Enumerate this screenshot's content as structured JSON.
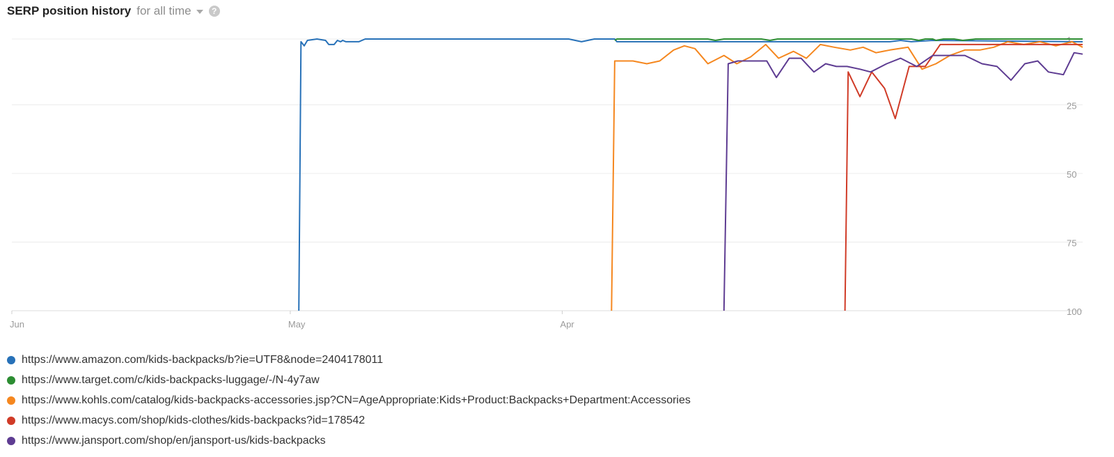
{
  "header": {
    "title": "SERP position history",
    "range_label": "for all time",
    "help_glyph": "?"
  },
  "chart_data": {
    "type": "line",
    "x_ticks": [
      "Jun",
      "May",
      "Apr"
    ],
    "y_ticks": [
      1,
      25,
      50,
      75,
      100
    ],
    "ylim": [
      1,
      100
    ],
    "y_reversed": true,
    "grid": true,
    "legend_position": "bottom",
    "series": [
      {
        "name": "https://www.amazon.com/kids-backpacks/b?ie=UTF8&node=2404178011",
        "color": "#2771b8",
        "points": [
          [
            0.268,
            100
          ],
          [
            0.27,
            2
          ],
          [
            0.273,
            3.5
          ],
          [
            0.276,
            1.5
          ],
          [
            0.285,
            1
          ],
          [
            0.293,
            1.5
          ],
          [
            0.296,
            3
          ],
          [
            0.301,
            3
          ],
          [
            0.304,
            1.5
          ],
          [
            0.307,
            2
          ],
          [
            0.309,
            1.5
          ],
          [
            0.312,
            2
          ],
          [
            0.317,
            2
          ],
          [
            0.324,
            2
          ],
          [
            0.33,
            1
          ],
          [
            0.52,
            1
          ],
          [
            0.532,
            2
          ],
          [
            0.544,
            1
          ],
          [
            0.563,
            1
          ],
          [
            0.565,
            2
          ],
          [
            0.82,
            2
          ],
          [
            0.83,
            1.5
          ],
          [
            0.84,
            2
          ],
          [
            0.86,
            1.5
          ],
          [
            1.0,
            2
          ]
        ]
      },
      {
        "name": "https://www.target.com/c/kids-backpacks-luggage/-/N-4y7aw",
        "color": "#2c8d32",
        "points": [
          [
            0.563,
            1.5
          ],
          [
            0.565,
            1
          ],
          [
            0.65,
            1
          ],
          [
            0.657,
            1.5
          ],
          [
            0.665,
            1
          ],
          [
            0.7,
            1
          ],
          [
            0.708,
            1.5
          ],
          [
            0.715,
            1
          ],
          [
            0.84,
            1
          ],
          [
            0.847,
            1.5
          ],
          [
            0.853,
            1
          ],
          [
            0.86,
            1
          ],
          [
            0.863,
            1.5
          ],
          [
            0.87,
            1
          ],
          [
            0.88,
            1
          ],
          [
            0.888,
            1.5
          ],
          [
            0.9,
            1
          ],
          [
            1.0,
            1
          ]
        ]
      },
      {
        "name": "https://www.kohls.com/catalog/kids-backpacks-accessories.jsp?CN=AgeAppropriate:Kids+Product:Backpacks+Department:Accessories",
        "color": "#f5871f",
        "points": [
          [
            0.56,
            100
          ],
          [
            0.563,
            9
          ],
          [
            0.58,
            9
          ],
          [
            0.593,
            10
          ],
          [
            0.605,
            9
          ],
          [
            0.618,
            5
          ],
          [
            0.628,
            3.5
          ],
          [
            0.638,
            4.5
          ],
          [
            0.65,
            10
          ],
          [
            0.665,
            7
          ],
          [
            0.677,
            10
          ],
          [
            0.69,
            7.5
          ],
          [
            0.704,
            3
          ],
          [
            0.716,
            8
          ],
          [
            0.73,
            5.5
          ],
          [
            0.742,
            8
          ],
          [
            0.755,
            3
          ],
          [
            0.768,
            4
          ],
          [
            0.783,
            5
          ],
          [
            0.795,
            4
          ],
          [
            0.807,
            6
          ],
          [
            0.82,
            5
          ],
          [
            0.837,
            4
          ],
          [
            0.85,
            12
          ],
          [
            0.863,
            10
          ],
          [
            0.876,
            7
          ],
          [
            0.89,
            5
          ],
          [
            0.904,
            5
          ],
          [
            0.917,
            4
          ],
          [
            0.93,
            2
          ],
          [
            0.945,
            3
          ],
          [
            0.96,
            2
          ],
          [
            0.975,
            3.5
          ],
          [
            0.99,
            2
          ],
          [
            1.0,
            4
          ]
        ]
      },
      {
        "name": "https://www.macys.com/shop/kids-clothes/kids-backpacks?id=178542",
        "color": "#d03b27",
        "points": [
          [
            0.778,
            100
          ],
          [
            0.781,
            13
          ],
          [
            0.792,
            22
          ],
          [
            0.803,
            13
          ],
          [
            0.815,
            19
          ],
          [
            0.825,
            30
          ],
          [
            0.838,
            11
          ],
          [
            0.853,
            11
          ],
          [
            0.867,
            3
          ],
          [
            0.9,
            3
          ],
          [
            0.94,
            3
          ],
          [
            0.978,
            3
          ],
          [
            1.0,
            3
          ]
        ]
      },
      {
        "name": "https://www.jansport.com/shop/en/jansport-us/kids-backpacks",
        "color": "#5e3c92",
        "points": [
          [
            0.665,
            100
          ],
          [
            0.669,
            10
          ],
          [
            0.678,
            9
          ],
          [
            0.705,
            9
          ],
          [
            0.714,
            15
          ],
          [
            0.726,
            8
          ],
          [
            0.737,
            8
          ],
          [
            0.749,
            13
          ],
          [
            0.76,
            10
          ],
          [
            0.77,
            11
          ],
          [
            0.78,
            11
          ],
          [
            0.792,
            12
          ],
          [
            0.802,
            13
          ],
          [
            0.817,
            10
          ],
          [
            0.83,
            8
          ],
          [
            0.845,
            11
          ],
          [
            0.86,
            7
          ],
          [
            0.875,
            7
          ],
          [
            0.89,
            7
          ],
          [
            0.906,
            10
          ],
          [
            0.92,
            11
          ],
          [
            0.933,
            16
          ],
          [
            0.946,
            10
          ],
          [
            0.958,
            9
          ],
          [
            0.968,
            13
          ],
          [
            0.982,
            14
          ],
          [
            0.992,
            6
          ],
          [
            1.0,
            6.5
          ]
        ]
      }
    ]
  }
}
